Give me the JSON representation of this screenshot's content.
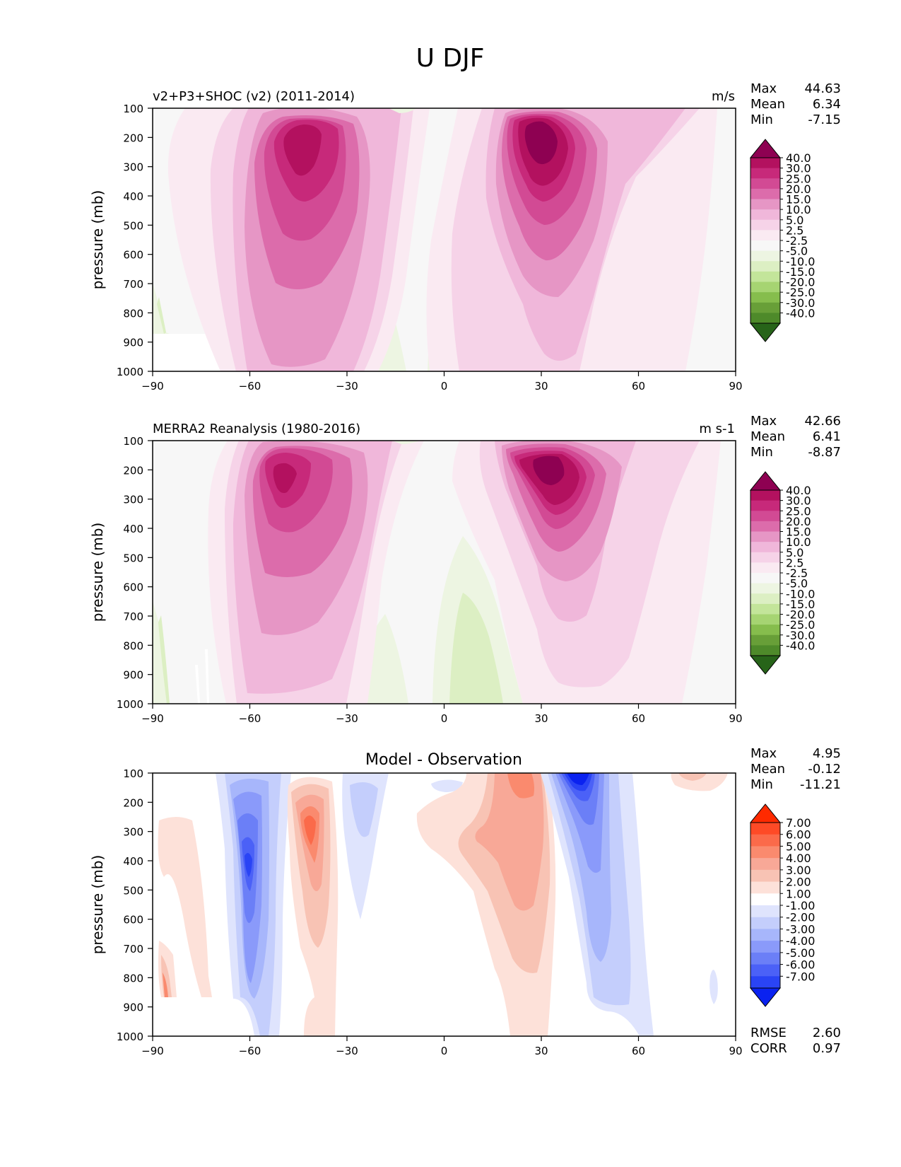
{
  "figure": {
    "title": "U DJF"
  },
  "chart_data": [
    {
      "type": "contour",
      "panel": "model",
      "title_left": "v2+P3+SHOC (v2) (2011-2014)",
      "title_center": "",
      "units": "m/s",
      "ylabel": "pressure (mb)",
      "x_ticks": [
        "−90",
        "−60",
        "−30",
        "0",
        "30",
        "60",
        "90"
      ],
      "y_ticks": [
        "100",
        "200",
        "300",
        "400",
        "500",
        "600",
        "700",
        "800",
        "900",
        "1000"
      ],
      "xlim": [
        -90,
        90
      ],
      "ylim": [
        1000,
        100
      ],
      "stats": [
        {
          "label": "Max",
          "value": "44.63"
        },
        {
          "label": "Mean",
          "value": "6.34"
        },
        {
          "label": "Min",
          "value": "-7.15"
        }
      ],
      "colorbar": {
        "levels": [
          "40.0",
          "30.0",
          "25.0",
          "20.0",
          "15.0",
          "10.0",
          "5.0",
          "2.5",
          "-2.5",
          "-5.0",
          "-10.0",
          "-15.0",
          "-20.0",
          "-25.0",
          "-30.0",
          "-40.0"
        ],
        "colors": [
          "#8e0152",
          "#b3115f",
          "#c7297a",
          "#d24a94",
          "#dc6cab",
          "#e696c5",
          "#f0b7da",
          "#f6d3e8",
          "#faeaf2",
          "#f7f7f7",
          "#edf5e2",
          "#dcefc3",
          "#c3e59a",
          "#a6d472",
          "#86bd4d",
          "#689f38",
          "#4e8a2a",
          "#276419"
        ]
      },
      "jets": [
        {
          "lat": -45,
          "p": 230,
          "max": 34
        },
        {
          "lat": 28,
          "p": 200,
          "max": 44.63
        }
      ],
      "missing_region": {
        "lat_range": [
          -90,
          -58
        ],
        "p_range": [
          870,
          1000
        ]
      },
      "easterly_regions": [
        {
          "lat_range": [
            -30,
            -12
          ],
          "p_range": [
            680,
            1000
          ]
        },
        {
          "lat_range": [
            -5,
            22
          ],
          "p_range": [
            510,
            1000
          ]
        },
        {
          "lat_range": [
            -90,
            -85
          ],
          "p_range": [
            650,
            870
          ]
        }
      ]
    },
    {
      "type": "contour",
      "panel": "observation",
      "title_left": "MERRA2 Reanalysis (1980-2016)",
      "title_center": "",
      "units": "m s-1",
      "ylabel": "pressure (mb)",
      "x_ticks": [
        "−90",
        "−60",
        "−30",
        "0",
        "30",
        "60",
        "90"
      ],
      "y_ticks": [
        "100",
        "200",
        "300",
        "400",
        "500",
        "600",
        "700",
        "800",
        "900",
        "1000"
      ],
      "xlim": [
        -90,
        90
      ],
      "ylim": [
        1000,
        100
      ],
      "stats": [
        {
          "label": "Max",
          "value": "42.66"
        },
        {
          "label": "Mean",
          "value": "6.41"
        },
        {
          "label": "Min",
          "value": "-8.87"
        }
      ],
      "colorbar": {
        "levels": [
          "40.0",
          "30.0",
          "25.0",
          "20.0",
          "15.0",
          "10.0",
          "5.0",
          "2.5",
          "-2.5",
          "-5.0",
          "-10.0",
          "-15.0",
          "-20.0",
          "-25.0",
          "-30.0",
          "-40.0"
        ],
        "colors": [
          "#8e0152",
          "#b3115f",
          "#c7297a",
          "#d24a94",
          "#dc6cab",
          "#e696c5",
          "#f0b7da",
          "#f6d3e8",
          "#faeaf2",
          "#f7f7f7",
          "#edf5e2",
          "#dcefc3",
          "#c3e59a",
          "#a6d472",
          "#86bd4d",
          "#689f38",
          "#4e8a2a",
          "#276419"
        ]
      },
      "jets": [
        {
          "lat": -49,
          "p": 250,
          "max": 33
        },
        {
          "lat": 31,
          "p": 200,
          "max": 42.66
        }
      ],
      "easterly_regions": [
        {
          "lat_range": [
            -33,
            -10
          ],
          "p_range": [
            700,
            1000
          ]
        },
        {
          "lat_range": [
            -5,
            25
          ],
          "p_range": [
            520,
            1000
          ]
        },
        {
          "lat_range": [
            -90,
            -83
          ],
          "p_range": [
            650,
            1000
          ]
        }
      ]
    },
    {
      "type": "contour",
      "panel": "difference",
      "title_left": "",
      "title_center": "Model - Observation",
      "units": "",
      "ylabel": "pressure (mb)",
      "x_ticks": [
        "−90",
        "−60",
        "−30",
        "0",
        "30",
        "60",
        "90"
      ],
      "y_ticks": [
        "100",
        "200",
        "300",
        "400",
        "500",
        "600",
        "700",
        "800",
        "900",
        "1000"
      ],
      "xlim": [
        -90,
        90
      ],
      "ylim": [
        1000,
        100
      ],
      "stats": [
        {
          "label": "Max",
          "value": "4.95"
        },
        {
          "label": "Mean",
          "value": "-0.12"
        },
        {
          "label": "Min",
          "value": "-11.21"
        }
      ],
      "extra_stats": [
        {
          "label": "RMSE",
          "value": "2.60"
        },
        {
          "label": "CORR",
          "value": "0.97"
        }
      ],
      "colorbar": {
        "levels": [
          "7.00",
          "6.00",
          "5.00",
          "4.00",
          "3.00",
          "2.00",
          "1.00",
          "-1.00",
          "-2.00",
          "-3.00",
          "-4.00",
          "-5.00",
          "-6.00",
          "-7.00"
        ],
        "colors": [
          "#ff2a00",
          "#fe4a26",
          "#fb6a4a",
          "#fa8a6e",
          "#f8a897",
          "#f8c3b4",
          "#fde1d9",
          "#ffffff",
          "#dfe4fd",
          "#c4cefc",
          "#a7b6fb",
          "#8a9afa",
          "#6b7ff7",
          "#4b61f7",
          "#2a44f5",
          "#0a22f0"
        ]
      },
      "anomalies": [
        {
          "lat": -59,
          "p": 350,
          "value": -6.5
        },
        {
          "lat": -41,
          "p": 230,
          "value": 4.5
        },
        {
          "lat": -24,
          "p": 230,
          "value": -2.5
        },
        {
          "lat": -3,
          "p": 130,
          "value": -1.5
        },
        {
          "lat": 22,
          "p": 350,
          "value": 4.2
        },
        {
          "lat": 40,
          "p": 120,
          "value": -11.21
        },
        {
          "lat": 44,
          "p": 400,
          "value": -4
        },
        {
          "lat": 77,
          "p": 120,
          "value": 2
        },
        {
          "lat": -87,
          "p": 820,
          "value": 4.95
        }
      ]
    }
  ]
}
